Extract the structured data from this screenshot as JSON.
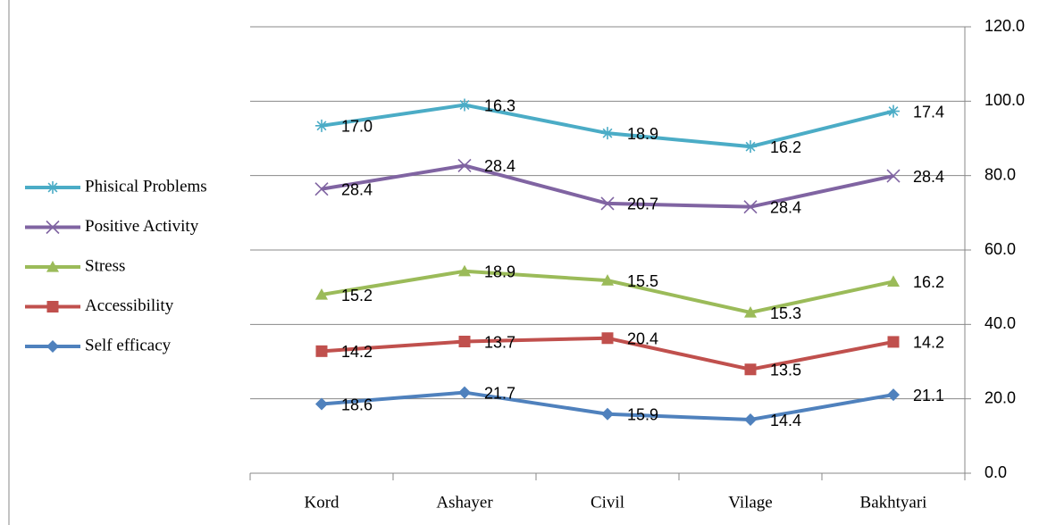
{
  "chart_data": {
    "type": "stacked-line",
    "categories": [
      "Kord",
      "Ashayer",
      "Civil",
      "Vilage",
      "Bakhtyari"
    ],
    "series": [
      {
        "name": "Phisical Problems",
        "color": "#4bacc6",
        "marker": "asterisk",
        "values": [
          17.0,
          16.3,
          18.9,
          16.2,
          17.4
        ],
        "value_labels": [
          "17.0",
          "16.3",
          "18.9",
          "16.2",
          "17.4"
        ]
      },
      {
        "name": "Positive Activity",
        "color": "#8064a2",
        "marker": "x",
        "values": [
          28.4,
          28.4,
          20.7,
          28.4,
          28.4
        ],
        "value_labels": [
          "28.4",
          "28.4",
          "20.7",
          "28.4",
          "28.4"
        ]
      },
      {
        "name": "Stress",
        "color": "#9bbb59",
        "marker": "triangle",
        "values": [
          15.2,
          18.9,
          15.5,
          15.3,
          16.2
        ],
        "value_labels": [
          "15.2",
          "18.9",
          "15.5",
          "15.3",
          "16.2"
        ]
      },
      {
        "name": "Accessibility",
        "color": "#c0504d",
        "marker": "square",
        "values": [
          14.2,
          13.7,
          20.4,
          13.5,
          14.2
        ],
        "value_labels": [
          "14.2",
          "13.7",
          "20.4",
          "13.5",
          "14.2"
        ]
      },
      {
        "name": "Self efficacy",
        "color": "#4f81bd",
        "marker": "diamond",
        "values": [
          18.6,
          21.7,
          15.9,
          14.4,
          21.1
        ],
        "value_labels": [
          "18.6",
          "21.7",
          "15.9",
          "14.4",
          "21.1"
        ]
      }
    ],
    "ylim": [
      0,
      120
    ],
    "yticks": [
      {
        "value": 0,
        "label": "0.0"
      },
      {
        "value": 20,
        "label": "20.0"
      },
      {
        "value": 40,
        "label": "40.0"
      },
      {
        "value": 60,
        "label": "60.0"
      },
      {
        "value": 80,
        "label": "80.0"
      },
      {
        "value": 100,
        "label": "100.0"
      },
      {
        "value": 120,
        "label": "120.0"
      }
    ],
    "grid": true,
    "legend": "left"
  }
}
